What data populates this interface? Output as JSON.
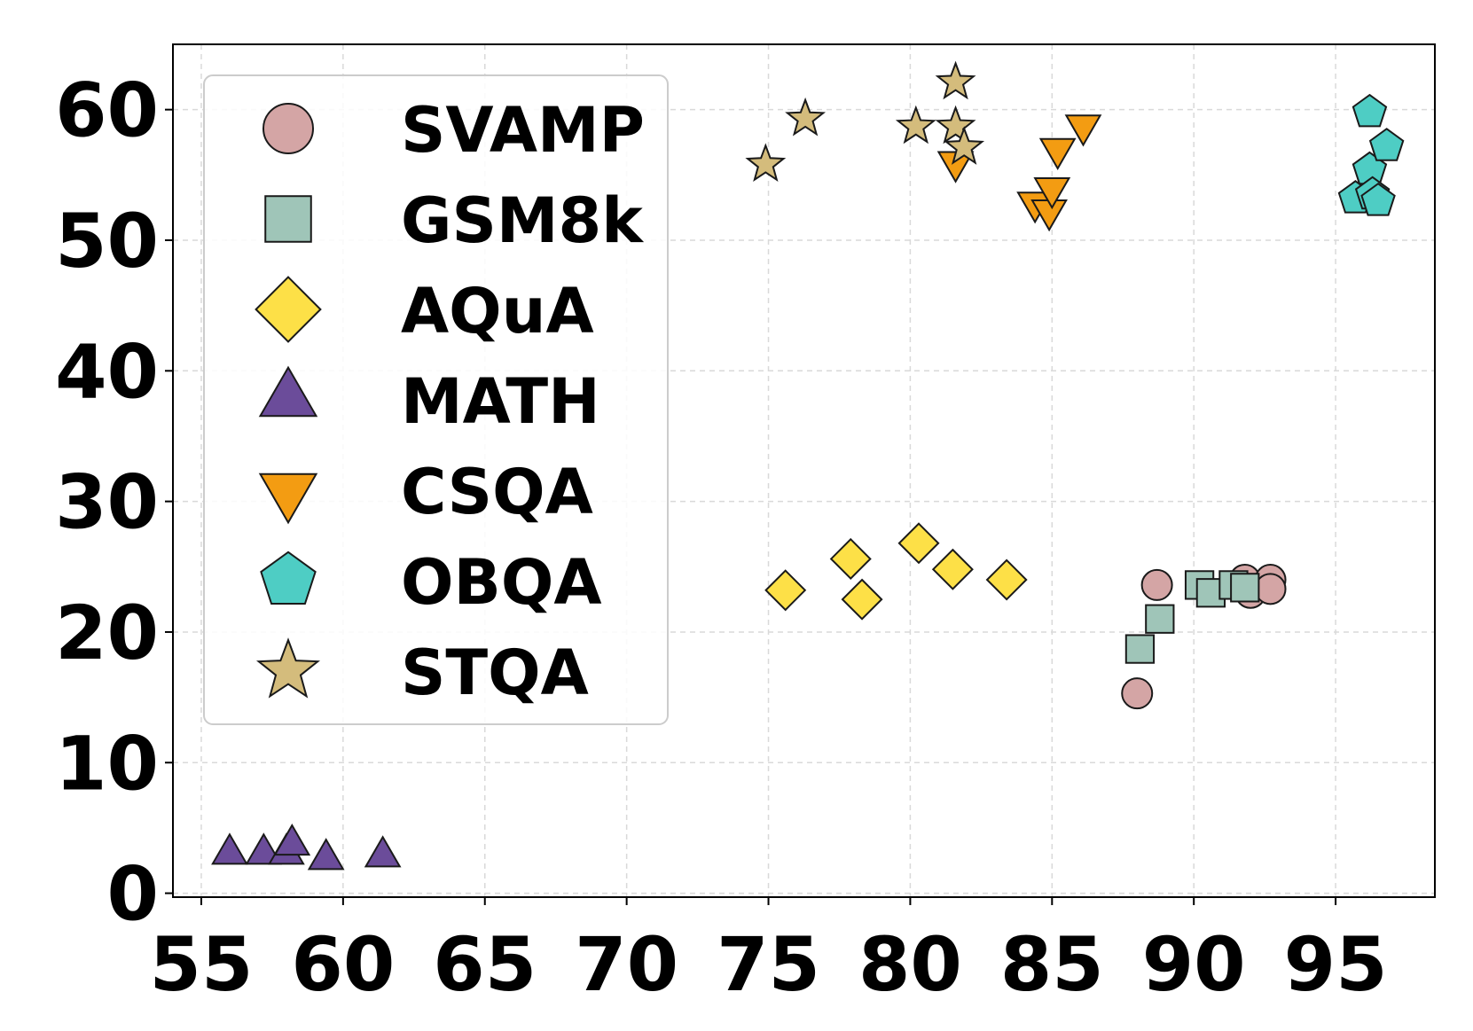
{
  "chart_data": {
    "type": "scatter",
    "title": "",
    "xlabel": "",
    "ylabel": "",
    "xlim": [
      54,
      98.5
    ],
    "ylim": [
      -0.3,
      65
    ],
    "xticks": [
      55,
      60,
      65,
      70,
      75,
      80,
      85,
      90,
      95
    ],
    "yticks": [
      0,
      10,
      20,
      30,
      40,
      50,
      60
    ],
    "grid": true,
    "legend": "upper-left",
    "series": [
      {
        "name": "SVAMP",
        "marker": "circle",
        "color": "#d4a5a5",
        "points": [
          [
            88.0,
            15.3
          ],
          [
            88.7,
            23.6
          ],
          [
            91.8,
            24.0
          ],
          [
            92.0,
            23.0
          ],
          [
            92.7,
            24.0
          ],
          [
            92.7,
            23.3
          ]
        ]
      },
      {
        "name": "GSM8k",
        "marker": "square",
        "color": "#9fc5b8",
        "points": [
          [
            88.1,
            18.7
          ],
          [
            88.8,
            21.0
          ],
          [
            90.2,
            23.6
          ],
          [
            90.6,
            23.0
          ],
          [
            91.4,
            23.6
          ],
          [
            91.8,
            23.4
          ]
        ]
      },
      {
        "name": "AQuA",
        "marker": "diamond",
        "color": "#fde047",
        "points": [
          [
            75.6,
            23.2
          ],
          [
            77.9,
            25.6
          ],
          [
            78.3,
            22.5
          ],
          [
            80.3,
            26.8
          ],
          [
            81.5,
            24.8
          ],
          [
            83.4,
            24.0
          ]
        ]
      },
      {
        "name": "MATH",
        "marker": "triangle-up",
        "color": "#6b4c9a",
        "points": [
          [
            56.0,
            3.0
          ],
          [
            57.2,
            3.0
          ],
          [
            58.0,
            3.0
          ],
          [
            58.2,
            3.7
          ],
          [
            59.4,
            2.6
          ],
          [
            61.4,
            2.8
          ]
        ]
      },
      {
        "name": "CSQA",
        "marker": "triangle-down",
        "color": "#f39c12",
        "points": [
          [
            81.6,
            56.0
          ],
          [
            84.4,
            52.9
          ],
          [
            84.9,
            52.3
          ],
          [
            85.0,
            54.0
          ],
          [
            85.2,
            57.0
          ],
          [
            86.1,
            58.8
          ]
        ]
      },
      {
        "name": "OBQA",
        "marker": "pentagon",
        "color": "#4ecdc4",
        "points": [
          [
            95.7,
            53.2
          ],
          [
            96.2,
            59.8
          ],
          [
            96.2,
            55.4
          ],
          [
            96.3,
            53.5
          ],
          [
            96.5,
            53.0
          ],
          [
            96.8,
            57.2
          ]
        ]
      },
      {
        "name": "STQA",
        "marker": "star",
        "color": "#d4bc7c",
        "points": [
          [
            74.9,
            55.8
          ],
          [
            76.3,
            59.3
          ],
          [
            80.2,
            58.7
          ],
          [
            81.6,
            62.1
          ],
          [
            81.6,
            58.7
          ],
          [
            81.9,
            57.1
          ]
        ]
      }
    ]
  }
}
